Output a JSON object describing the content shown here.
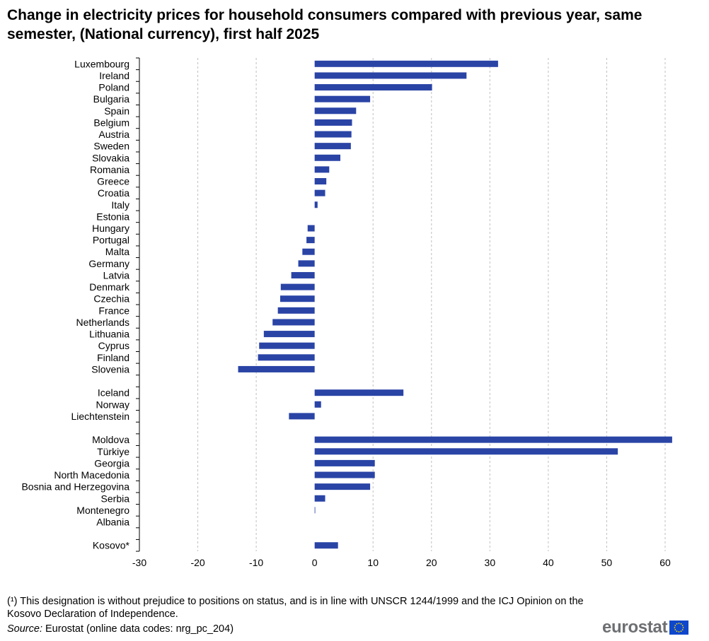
{
  "title": "Change in electricity prices for household consumers compared with previous year, same semester, (National currency), first half 2025",
  "footnote": "(¹) This designation is without prejudice to positions on status, and is in line with UNSCR 1244/1999 and the ICJ Opinion on the Kosovo Declaration of Independence.",
  "source": {
    "label": "Source:",
    "text": " Eurostat (online data codes: nrg_pc_204)"
  },
  "logo": {
    "text": "eurostat",
    "flag_icon": "eu-flag-icon"
  },
  "colors": {
    "bar": "#2a44a6",
    "grid": "#bfbfbf",
    "axis": "#000000"
  },
  "chart_data": {
    "type": "bar",
    "orientation": "horizontal",
    "xlim": [
      -30,
      60
    ],
    "xticks": [
      "-30",
      "-20",
      "-10",
      "0",
      "10",
      "20",
      "30",
      "40",
      "50",
      "60"
    ],
    "grid": "vertical dashed",
    "groups": [
      {
        "categories": [
          "Luxembourg",
          "Ireland",
          "Poland",
          "Bulgaria",
          "Spain",
          "Belgium",
          "Austria",
          "Sweden",
          "Slovakia",
          "Romania",
          "Greece",
          "Croatia",
          "Italy",
          "Estonia",
          "Hungary",
          "Portugal",
          "Malta",
          "Germany",
          "Latvia",
          "Denmark",
          "Czechia",
          "France",
          "Netherlands",
          "Lithuania",
          "Cyprus",
          "Finland",
          "Slovenia"
        ],
        "values": [
          31.4,
          26,
          20.1,
          9.5,
          7.1,
          6.4,
          6.3,
          6.2,
          4.4,
          2.5,
          2,
          1.8,
          0.5,
          0,
          -1.2,
          -1.4,
          -2.1,
          -2.8,
          -4,
          -5.8,
          -5.9,
          -6.3,
          -7.2,
          -8.7,
          -9.5,
          -9.7,
          -13.1
        ]
      },
      {
        "categories": [
          "Iceland",
          "Norway",
          "Liechtenstein"
        ],
        "values": [
          15.2,
          1.1,
          -4.4
        ]
      },
      {
        "categories": [
          "Moldova",
          "Türkiye",
          "Georgia",
          "North Macedonia",
          "Bosnia and Herzegovina",
          "Serbia",
          "Montenegro",
          "Albania"
        ],
        "values": [
          61.2,
          51.9,
          10.3,
          10.3,
          9.5,
          1.8,
          0.1,
          0
        ]
      },
      {
        "categories": [
          "Kosovo*"
        ],
        "values": [
          4
        ]
      }
    ]
  }
}
